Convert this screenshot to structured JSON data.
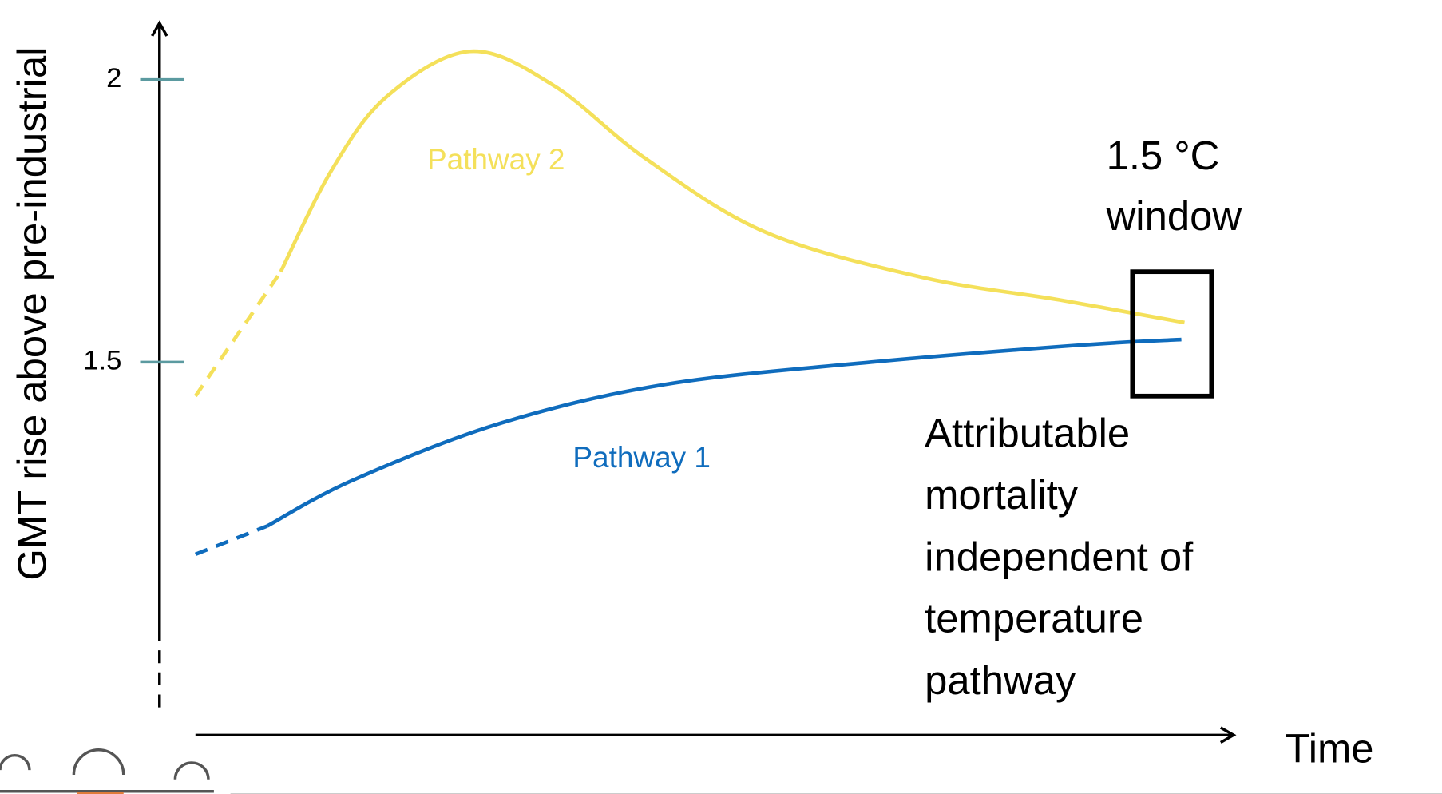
{
  "chart_data": {
    "type": "line",
    "y_label": "GMT rise above pre-industrial",
    "x_label": "Time",
    "xlim": [
      0,
      10
    ],
    "ylim": [
      0.84,
      2.1
    ],
    "yticks": [
      1.5,
      2
    ],
    "series": [
      {
        "name": "Pathway 2",
        "color": "#f4e05a",
        "x": [
          0.82,
          1.31,
          1.84,
          2.64,
          3.44,
          4.33,
          5.48,
          6.99,
          8.31,
          9.51
        ],
        "values": [
          1.66,
          1.84,
          1.97,
          2.05,
          1.99,
          1.86,
          1.73,
          1.65,
          1.61,
          1.57
        ],
        "projected": {
          "x": [
            0,
            0.82
          ],
          "values": [
            1.44,
            1.66
          ]
        }
      },
      {
        "name": "Pathway 1",
        "color": "#0f6cbd",
        "x": [
          0.69,
          1.5,
          2.9,
          4.5,
          6.5,
          8.5,
          9.48
        ],
        "values": [
          1.21,
          1.29,
          1.39,
          1.46,
          1.5,
          1.53,
          1.54
        ],
        "projected": {
          "x": [
            0,
            0.69
          ],
          "values": [
            1.16,
            1.21
          ]
        }
      }
    ],
    "window": {
      "label": [
        "1.5 °C",
        "window"
      ],
      "xlim": [
        9.01,
        9.77
      ],
      "ylim": [
        1.44,
        1.66
      ]
    },
    "annotation": [
      "Attributable",
      "mortality",
      "independent of",
      "temperature",
      "pathway"
    ]
  }
}
